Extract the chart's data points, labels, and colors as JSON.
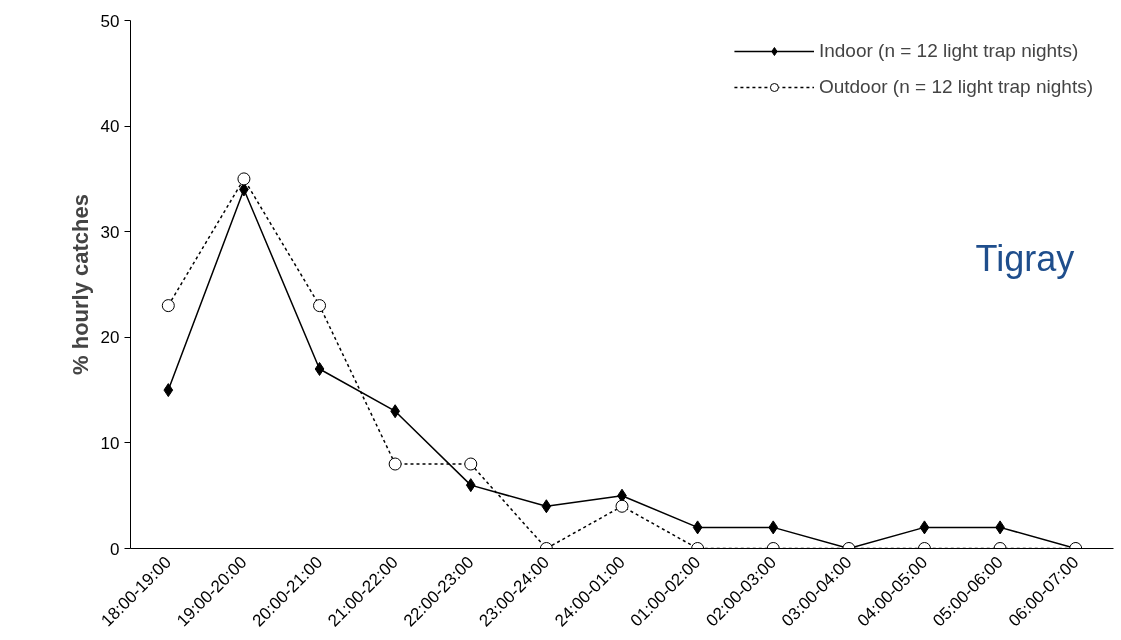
{
  "chart_data": {
    "type": "line",
    "categories": [
      "18:00-19:00",
      "19:00-20:00",
      "20:00-21:00",
      "21:00-22:00",
      "22:00-23:00",
      "23:00-24:00",
      "24:00-01:00",
      "01:00-02:00",
      "02:00-03:00",
      "03:00-04:00",
      "04:00-05:00",
      "05:00-06:00",
      "06:00-07:00"
    ],
    "series": [
      {
        "name": "Indoor (n = 12 light trap nights)",
        "color": "#000000",
        "marker": "diamond",
        "line_style": "solid",
        "values": [
          15,
          34,
          17,
          13,
          6,
          4,
          5,
          2,
          2,
          0,
          2,
          2,
          0
        ]
      },
      {
        "name": "Outdoor (n = 12 light trap nights)",
        "color": "#000000",
        "marker": "circle",
        "line_style": "dotted",
        "values": [
          23,
          35,
          23,
          8,
          8,
          0,
          4,
          0,
          0,
          0,
          0,
          0,
          0
        ]
      }
    ],
    "ylabel": "% hourly catches",
    "ylim": [
      0,
      50
    ],
    "yticks": [
      0,
      10,
      20,
      30,
      40,
      50
    ],
    "annotations": [
      "Tigray"
    ],
    "grid": false,
    "legend": "top right"
  }
}
